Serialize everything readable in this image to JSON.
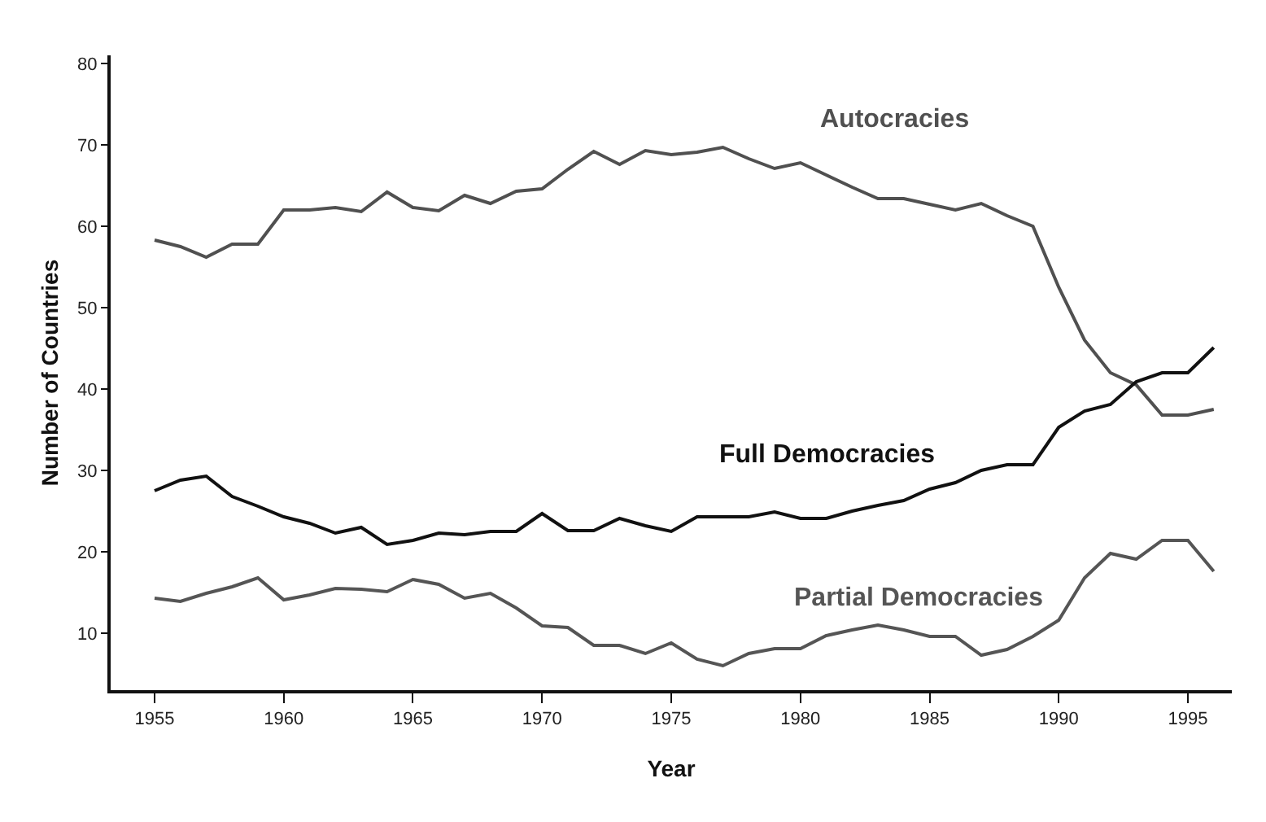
{
  "chart_data": {
    "type": "line",
    "xlabel": "Year",
    "ylabel": "Number of Countries",
    "x": [
      1955,
      1956,
      1957,
      1958,
      1959,
      1960,
      1961,
      1962,
      1963,
      1964,
      1965,
      1966,
      1967,
      1968,
      1969,
      1970,
      1971,
      1972,
      1973,
      1974,
      1975,
      1976,
      1977,
      1978,
      1979,
      1980,
      1981,
      1982,
      1983,
      1984,
      1985,
      1986,
      1987,
      1988,
      1989,
      1990,
      1991,
      1992,
      1993,
      1994,
      1995,
      1996
    ],
    "series": [
      {
        "name": "Autocracies",
        "color": "#505050",
        "values": [
          58.3,
          57.5,
          56.2,
          57.8,
          57.8,
          62,
          62,
          62.3,
          61.8,
          64.2,
          62.3,
          61.9,
          63.8,
          62.8,
          64.3,
          64.6,
          67,
          69.2,
          67.6,
          69.3,
          68.8,
          69.1,
          69.7,
          68.3,
          67.1,
          67.8,
          66.3,
          64.8,
          63.4,
          63.4,
          62.7,
          62,
          62.8,
          61.3,
          60,
          52.5,
          46,
          42,
          40.5,
          36.8,
          36.8,
          37.5
        ]
      },
      {
        "name": "Full Democracies",
        "color": "#111111",
        "values": [
          27.5,
          28.8,
          29.3,
          26.8,
          25.6,
          24.3,
          23.5,
          22.3,
          23,
          20.9,
          21.4,
          22.3,
          22.1,
          22.5,
          22.5,
          24.7,
          22.6,
          22.6,
          24.1,
          23.2,
          22.5,
          24.3,
          24.3,
          24.3,
          24.9,
          24.1,
          24.1,
          25,
          25.7,
          26.3,
          27.7,
          28.5,
          30,
          30.7,
          30.7,
          35.3,
          37.3,
          38.1,
          40.9,
          42,
          42,
          45.1
        ]
      },
      {
        "name": "Partial Democracies",
        "color": "#555555",
        "values": [
          14.3,
          13.9,
          14.9,
          15.7,
          16.8,
          14.1,
          14.7,
          15.5,
          15.4,
          15.1,
          16.6,
          16,
          14.3,
          14.9,
          13.1,
          10.9,
          10.7,
          8.5,
          8.5,
          7.5,
          8.8,
          6.8,
          6,
          7.5,
          8.1,
          8.1,
          9.7,
          10.4,
          11,
          10.4,
          9.6,
          9.6,
          7.3,
          8,
          9.6,
          11.6,
          16.8,
          19.8,
          19.1,
          21.4,
          21.4,
          17.6
        ]
      }
    ],
    "xlim": [
      1953.3,
      1996.7
    ],
    "xticks": [
      1955,
      1960,
      1965,
      1970,
      1975,
      1980,
      1985,
      1990,
      1995
    ],
    "ylim": [
      3,
      81
    ],
    "yticks": [
      10,
      20,
      30,
      40,
      50,
      60,
      70,
      80
    ],
    "grid": false,
    "legend": false,
    "marker": "none",
    "line_style": "solid"
  }
}
